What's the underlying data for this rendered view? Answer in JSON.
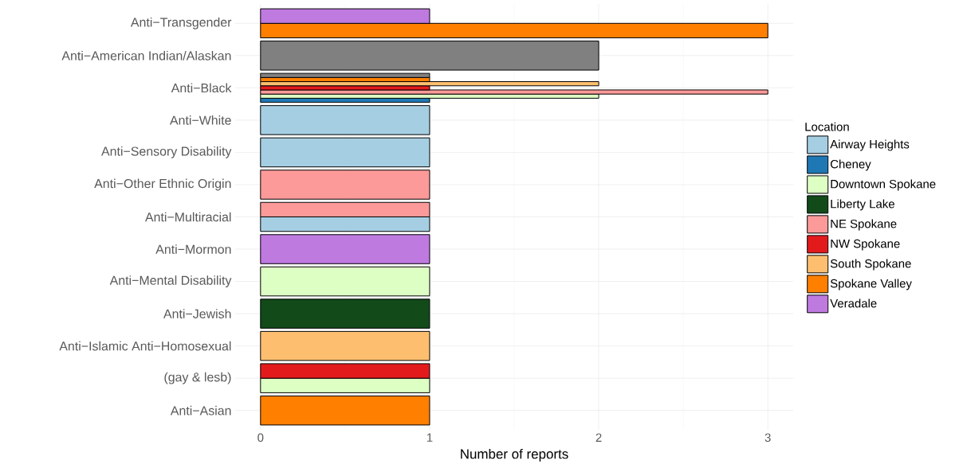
{
  "chart_data": {
    "type": "bar",
    "orientation": "horizontal",
    "xlabel": "Number of reports",
    "legend_title": "Location",
    "legend": "right",
    "grid": true,
    "categories": [
      "Anti−Transgender",
      "Anti−American Indian/Alaskan",
      "Anti−Black",
      "Anti−White",
      "Anti−Sensory Disability",
      "Anti−Other Ethnic Origin",
      "Anti−Multiracial",
      "Anti−Mormon",
      "Anti−Mental Disability",
      "Anti−Jewish",
      "Anti−Islamic  Anti−Homosexual",
      "(gay & lesb)",
      "Anti−Asian"
    ],
    "xlim": [
      -0.15,
      3.15
    ],
    "xticks": [
      0,
      1,
      2,
      3
    ],
    "series": [
      {
        "name": "Airway Heights",
        "color": "#a6cee3",
        "values": [
          null,
          null,
          null,
          1,
          1,
          null,
          1,
          null,
          null,
          null,
          null,
          null,
          null
        ]
      },
      {
        "name": "Cheney",
        "color": "#1f78b4",
        "values": [
          null,
          null,
          1,
          null,
          null,
          null,
          null,
          null,
          null,
          null,
          null,
          null,
          null
        ]
      },
      {
        "name": "Downtown Spokane",
        "color": "#ddffc4",
        "values": [
          null,
          null,
          2,
          null,
          null,
          null,
          null,
          null,
          1,
          null,
          null,
          1,
          null
        ]
      },
      {
        "name": "Liberty Lake",
        "color": "#124a1a",
        "values": [
          null,
          null,
          null,
          null,
          null,
          null,
          null,
          null,
          null,
          1,
          null,
          null,
          null
        ]
      },
      {
        "name": "NE Spokane",
        "color": "#fb9a99",
        "values": [
          null,
          null,
          3,
          null,
          null,
          1,
          1,
          null,
          null,
          null,
          null,
          null,
          null
        ]
      },
      {
        "name": "NW Spokane",
        "color": "#e31a1c",
        "values": [
          null,
          null,
          1,
          null,
          null,
          null,
          null,
          null,
          null,
          null,
          null,
          1,
          null
        ]
      },
      {
        "name": "South Spokane",
        "color": "#fdbf6f",
        "values": [
          null,
          null,
          2,
          null,
          null,
          null,
          null,
          null,
          null,
          null,
          1,
          null,
          null
        ]
      },
      {
        "name": "Spokane Valley",
        "color": "#ff7f00",
        "values": [
          3,
          null,
          1,
          null,
          null,
          null,
          null,
          null,
          null,
          null,
          null,
          null,
          1
        ]
      },
      {
        "name": "Veradale",
        "color": "#bf7ae0",
        "values": [
          1,
          null,
          null,
          null,
          null,
          null,
          null,
          1,
          null,
          null,
          null,
          null,
          null
        ]
      },
      {
        "color": "#808080",
        "values": [
          null,
          2,
          1,
          null,
          null,
          null,
          null,
          null,
          null,
          null,
          null,
          null,
          null
        ]
      }
    ]
  }
}
